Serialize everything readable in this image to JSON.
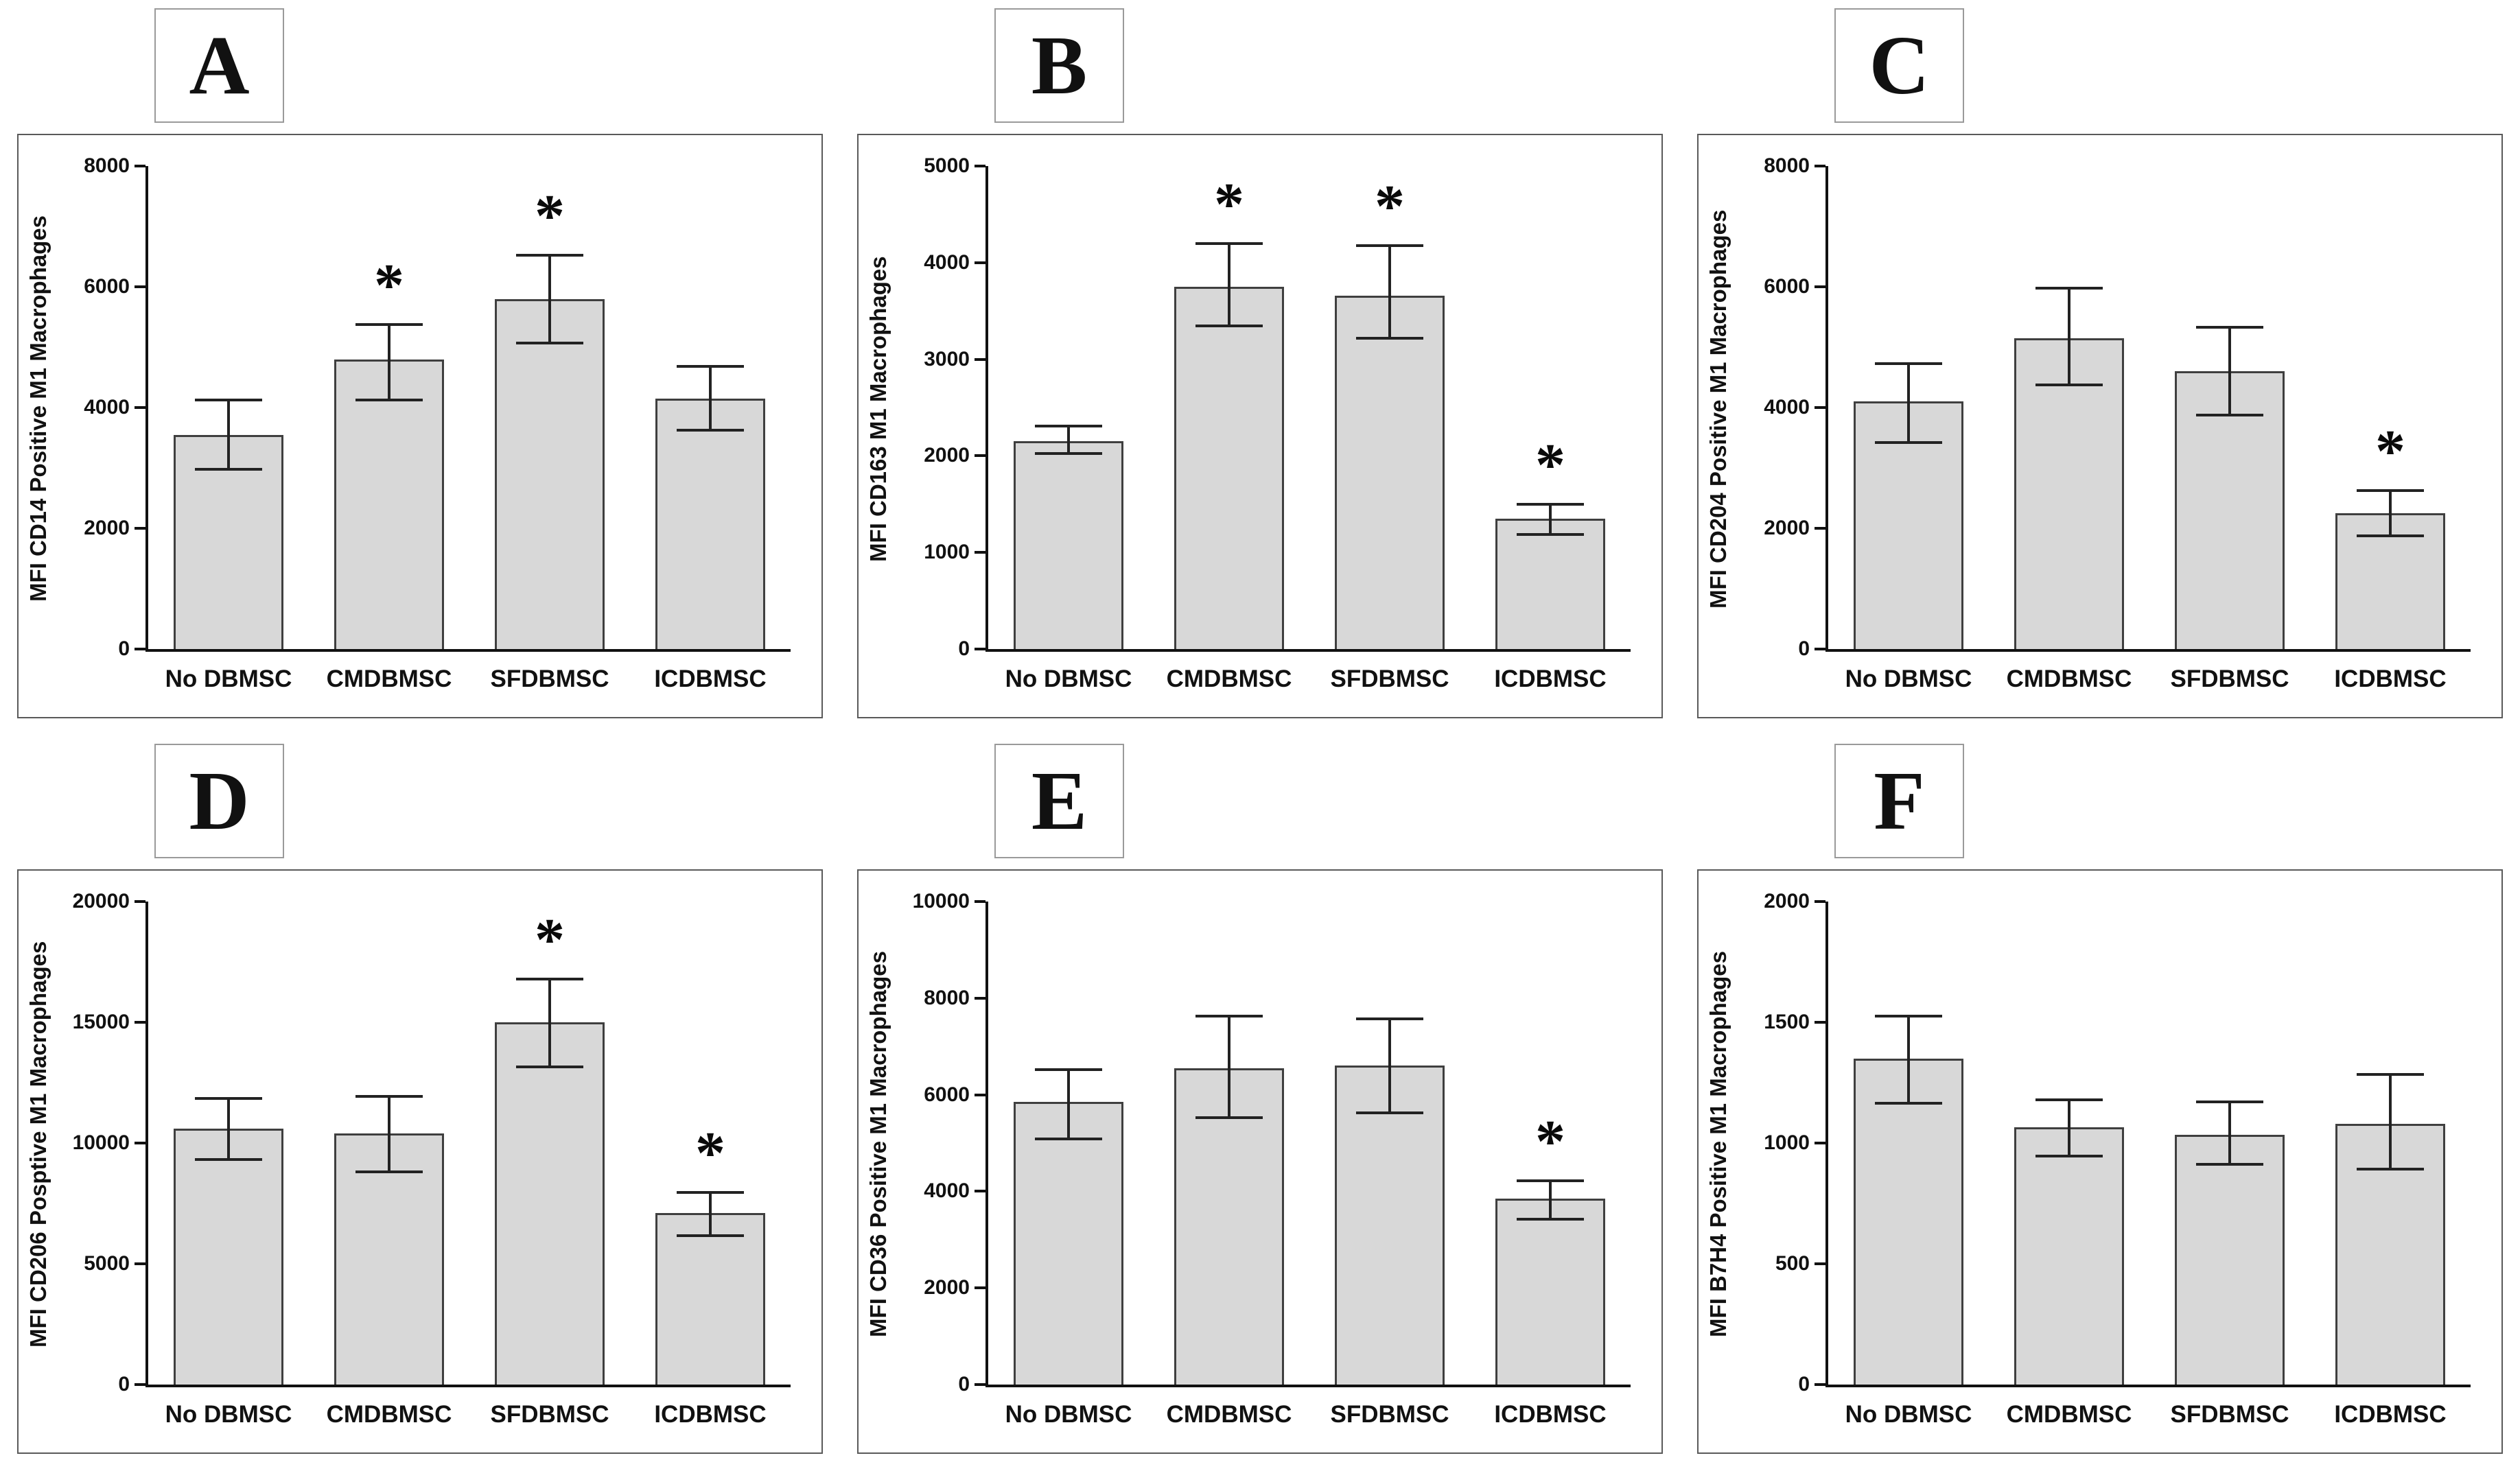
{
  "figure": {
    "significance_marker": "*",
    "bar_fill_color": "#d8d8d8",
    "bar_border_color": "#3f3f3f",
    "axis_color": "#111111"
  },
  "chart_data": "see charts",
  "charts": [
    {
      "panel": "A",
      "type": "bar",
      "ylabel": "MFI CD14 Positive M1 Macrophages",
      "xlabel": "",
      "categories": [
        "No DBMSC",
        "CMDBMSC",
        "SFDBMSC",
        "ICDBMSC"
      ],
      "values": [
        3550,
        4800,
        5800,
        4150
      ],
      "error_low": [
        2950,
        4100,
        5050,
        3600
      ],
      "error_high": [
        4150,
        5400,
        6550,
        4700
      ],
      "significant": [
        false,
        true,
        true,
        false
      ],
      "ylim": [
        0,
        8000
      ],
      "yticks": [
        0,
        2000,
        4000,
        6000,
        8000
      ]
    },
    {
      "panel": "B",
      "type": "bar",
      "ylabel": "MFI CD163 M1 Macrophages",
      "xlabel": "",
      "categories": [
        "No DBMSC",
        "CMDBMSC",
        "SFDBMSC",
        "ICDBMSC"
      ],
      "values": [
        2150,
        3750,
        3660,
        1350
      ],
      "error_low": [
        2010,
        3330,
        3200,
        1170
      ],
      "error_high": [
        2320,
        4210,
        4190,
        1510
      ],
      "significant": [
        false,
        true,
        true,
        true
      ],
      "ylim": [
        0,
        5000
      ],
      "yticks": [
        0,
        1000,
        2000,
        3000,
        4000,
        5000
      ]
    },
    {
      "panel": "C",
      "type": "bar",
      "ylabel": "MFI CD204 Positive M1 Macrophages",
      "xlabel": "",
      "categories": [
        "No DBMSC",
        "CMDBMSC",
        "SFDBMSC",
        "ICDBMSC"
      ],
      "values": [
        4100,
        5150,
        4600,
        2250
      ],
      "error_low": [
        3400,
        4350,
        3850,
        1850
      ],
      "error_high": [
        4750,
        6000,
        5350,
        2650
      ],
      "significant": [
        false,
        false,
        false,
        true
      ],
      "ylim": [
        0,
        8000
      ],
      "yticks": [
        0,
        2000,
        4000,
        6000,
        8000
      ]
    },
    {
      "panel": "D",
      "type": "bar",
      "ylabel": "MFI CD206 Posptive M1 Macrophages",
      "xlabel": "",
      "categories": [
        "No DBMSC",
        "CMDBMSC",
        "SFDBMSC",
        "ICDBMSC"
      ],
      "values": [
        10600,
        10400,
        15000,
        7100
      ],
      "error_low": [
        9250,
        8750,
        13100,
        6100
      ],
      "error_high": [
        11900,
        12000,
        16850,
        8000
      ],
      "significant": [
        false,
        false,
        true,
        true
      ],
      "ylim": [
        0,
        20000
      ],
      "yticks": [
        0,
        5000,
        10000,
        15000,
        20000
      ]
    },
    {
      "panel": "E",
      "type": "bar",
      "ylabel": "MFI CD36 Positive M1 Macrophages",
      "xlabel": "",
      "categories": [
        "No DBMSC",
        "CMDBMSC",
        "SFDBMSC",
        "ICDBMSC"
      ],
      "values": [
        5850,
        6550,
        6600,
        3850
      ],
      "error_low": [
        5050,
        5500,
        5600,
        3400
      ],
      "error_high": [
        6550,
        7650,
        7600,
        4250
      ],
      "significant": [
        false,
        false,
        false,
        true
      ],
      "ylim": [
        0,
        10000
      ],
      "yticks": [
        0,
        2000,
        4000,
        6000,
        8000,
        10000
      ]
    },
    {
      "panel": "F",
      "type": "bar",
      "ylabel": "MFI B7H4 Positive M1 Macrophages",
      "xlabel": "",
      "categories": [
        "No DBMSC",
        "CMDBMSC",
        "SFDBMSC",
        "ICDBMSC"
      ],
      "values": [
        1350,
        1065,
        1035,
        1080
      ],
      "error_low": [
        1160,
        940,
        905,
        885
      ],
      "error_high": [
        1530,
        1185,
        1175,
        1290
      ],
      "significant": [
        false,
        false,
        false,
        false
      ],
      "ylim": [
        0,
        2000
      ],
      "yticks": [
        0,
        500,
        1000,
        1500,
        2000
      ]
    }
  ]
}
